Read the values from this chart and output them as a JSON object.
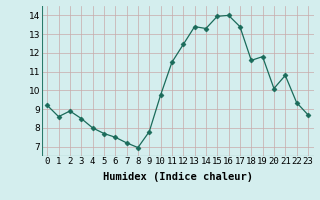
{
  "x": [
    0,
    1,
    2,
    3,
    4,
    5,
    6,
    7,
    8,
    9,
    10,
    11,
    12,
    13,
    14,
    15,
    16,
    17,
    18,
    19,
    20,
    21,
    22,
    23
  ],
  "y": [
    9.2,
    8.6,
    8.9,
    8.5,
    8.0,
    7.7,
    7.5,
    7.2,
    6.95,
    7.8,
    9.75,
    11.5,
    12.45,
    13.4,
    13.3,
    13.95,
    14.0,
    13.4,
    11.6,
    11.8,
    10.1,
    10.8,
    9.35,
    8.7
  ],
  "line_color": "#1a6b5a",
  "marker": "D",
  "marker_size": 2.5,
  "bg_color": "#d4eeee",
  "grid_color": "#c8aaaa",
  "xlabel": "Humidex (Indice chaleur)",
  "xlim": [
    -0.5,
    23.5
  ],
  "ylim": [
    6.5,
    14.5
  ],
  "yticks": [
    7,
    8,
    9,
    10,
    11,
    12,
    13,
    14
  ],
  "label_fontsize": 7.5,
  "tick_fontsize": 6.5
}
